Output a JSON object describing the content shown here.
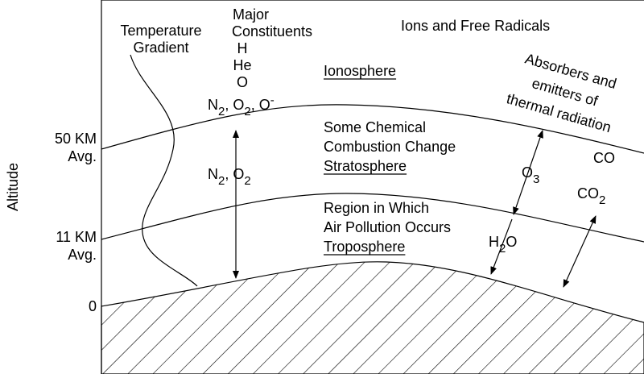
{
  "axis": {
    "title": "Altitude",
    "levels": [
      [
        "50 KM",
        "Avg."
      ],
      [
        "11 KM",
        "Avg."
      ],
      [
        "0"
      ]
    ]
  },
  "temperature_label": [
    "Temperature",
    "Gradient"
  ],
  "constituents": {
    "heading": [
      "Major",
      "Constituents"
    ],
    "species": [
      "H",
      "He",
      "O"
    ]
  },
  "ions_heading": "Ions and Free Radicals",
  "ionosphere": {
    "name": "Ionosphere"
  },
  "stratosphere": {
    "description": [
      "Some Chemical",
      "Combustion Change"
    ],
    "name": "Stratosphere"
  },
  "troposphere": {
    "description": [
      "Region in Which",
      "Air Pollution Occurs"
    ],
    "name": "Troposphere"
  },
  "absorbers": [
    "Absorbers and",
    "emitters of",
    "thermal radiation"
  ],
  "formulas": {
    "upper": [
      {
        "t": "N"
      },
      {
        "sub": "2"
      },
      {
        "t": ", O"
      },
      {
        "sub": "2"
      },
      {
        "t": ", O"
      },
      {
        "sup": "-"
      }
    ],
    "lower": [
      {
        "t": "N"
      },
      {
        "sub": "2"
      },
      {
        "t": ", O"
      },
      {
        "sub": "2"
      }
    ],
    "o3": [
      {
        "t": "O"
      },
      {
        "sub": "3"
      }
    ],
    "co": [
      {
        "t": "CO"
      }
    ],
    "co2": [
      {
        "t": "CO"
      },
      {
        "sub": "2"
      }
    ],
    "h2o": [
      {
        "t": "H"
      },
      {
        "sub": "2"
      },
      {
        "t": "O"
      }
    ]
  }
}
